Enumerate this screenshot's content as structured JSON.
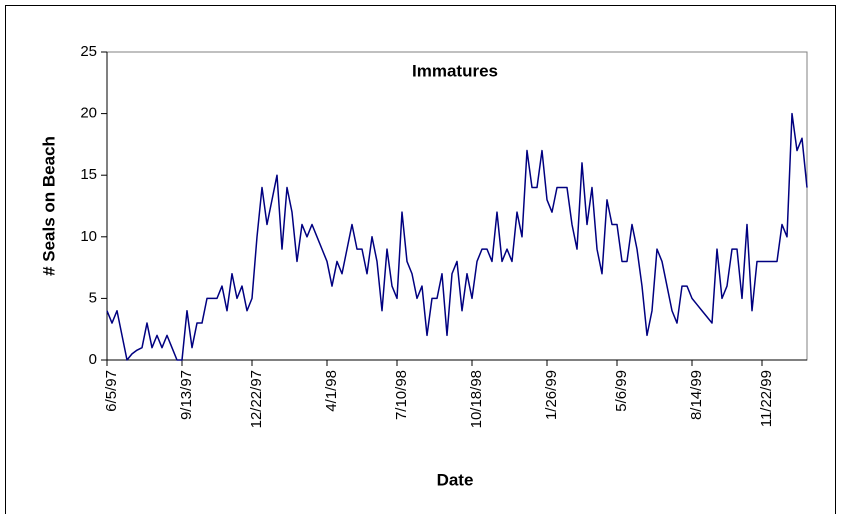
{
  "chart_data": {
    "type": "line",
    "title": "Immatures",
    "x_label": "Date",
    "y_label": "# Seals on Beach",
    "categories": [
      "6/5/97",
      null,
      null,
      null,
      null,
      null,
      null,
      null,
      null,
      null,
      null,
      null,
      null,
      null,
      null,
      "9/13/97",
      null,
      null,
      null,
      null,
      null,
      null,
      null,
      null,
      null,
      null,
      null,
      null,
      null,
      "12/22/97",
      null,
      null,
      null,
      null,
      null,
      null,
      null,
      null,
      null,
      null,
      null,
      null,
      null,
      null,
      "4/1/98",
      null,
      null,
      null,
      null,
      null,
      null,
      null,
      null,
      null,
      null,
      null,
      null,
      null,
      "7/10/98",
      null,
      null,
      null,
      null,
      null,
      null,
      null,
      null,
      null,
      null,
      null,
      null,
      null,
      null,
      "10/18/98",
      null,
      null,
      null,
      null,
      null,
      null,
      null,
      null,
      null,
      null,
      null,
      null,
      null,
      null,
      "1/26/99",
      null,
      null,
      null,
      null,
      null,
      null,
      null,
      null,
      null,
      null,
      null,
      null,
      null,
      "5/6/99",
      null,
      null,
      null,
      null,
      null,
      null,
      null,
      null,
      null,
      null,
      null,
      null,
      null,
      null,
      "8/14/99",
      null,
      null,
      null,
      null,
      null,
      null,
      null,
      null,
      null,
      null,
      null,
      null,
      null,
      "11/22/99",
      null,
      null,
      null,
      null,
      null,
      null,
      null,
      null,
      null
    ],
    "values": [
      4,
      3,
      4,
      2,
      0,
      0.5,
      0.8,
      1,
      3,
      1,
      2,
      1,
      2,
      1,
      0,
      0,
      4,
      1,
      3,
      3,
      5,
      5,
      5,
      6,
      4,
      7,
      5,
      6,
      4,
      5,
      10,
      14,
      11,
      13,
      15,
      9,
      14,
      12,
      8,
      11,
      10,
      11,
      10,
      9,
      8,
      6,
      8,
      7,
      9,
      11,
      9,
      9,
      7,
      10,
      8,
      4,
      9,
      6,
      5,
      12,
      8,
      7,
      5,
      6,
      2,
      5,
      5,
      7,
      2,
      7,
      8,
      4,
      7,
      5,
      8,
      9,
      9,
      8,
      12,
      8,
      9,
      8,
      12,
      10,
      17,
      14,
      14,
      17,
      13,
      12,
      14,
      14,
      14,
      11,
      9,
      16,
      11,
      14,
      9,
      7,
      13,
      11,
      11,
      8,
      8,
      11,
      9,
      6,
      2,
      4,
      9,
      8,
      6,
      4,
      3,
      6,
      6,
      5,
      4.5,
      4,
      3.5,
      3,
      9,
      5,
      6,
      9,
      9,
      5,
      11,
      4,
      8,
      8,
      8,
      8,
      8,
      11,
      10,
      20,
      17,
      18,
      14
    ],
    "color": "#000080",
    "ylim": [
      0,
      25
    ],
    "yticks": [
      0,
      5,
      10,
      15,
      20,
      25
    ]
  }
}
